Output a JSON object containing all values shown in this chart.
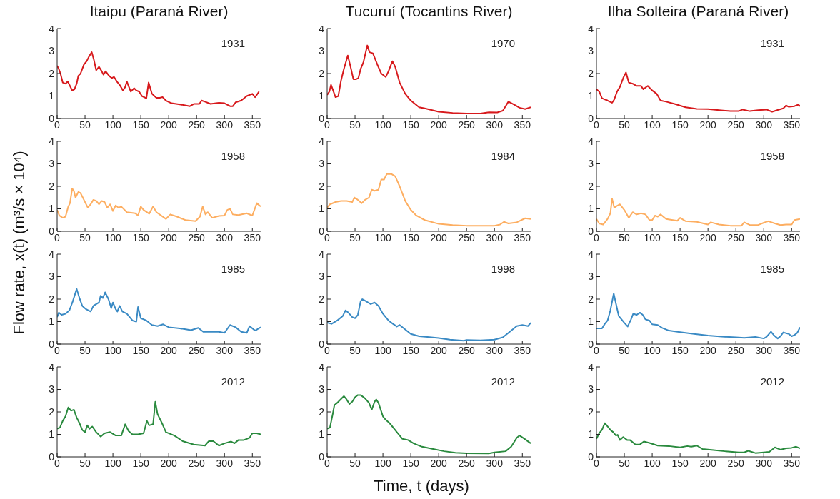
{
  "chart_data": [
    {
      "type": "line",
      "title": "Itaipu (Paraná River)",
      "annotations": [
        "1931"
      ],
      "xlim": [
        0,
        365
      ],
      "xticks": [
        0,
        50,
        100,
        150,
        200,
        250,
        300,
        350
      ],
      "ylim": [
        0,
        4
      ],
      "yticks": [
        0,
        1,
        2,
        3,
        4
      ],
      "series": [
        {
          "color": "#d7191c",
          "x": [
            0,
            3,
            6,
            10,
            15,
            19,
            22,
            27,
            31,
            35,
            38,
            42,
            48,
            53,
            57,
            62,
            66,
            70,
            75,
            80,
            83,
            87,
            93,
            98,
            102,
            107,
            112,
            118,
            122,
            125,
            128,
            132,
            138,
            142,
            147,
            152,
            160,
            164,
            170,
            178,
            184,
            189,
            195,
            205,
            220,
            238,
            245,
            255,
            259,
            265,
            275,
            290,
            300,
            310,
            315,
            320,
            330,
            340,
            350,
            355,
            362
          ],
          "values": [
            2.35,
            2.2,
            2.0,
            1.6,
            1.55,
            1.65,
            1.5,
            1.25,
            1.3,
            1.55,
            1.9,
            2.0,
            2.4,
            2.55,
            2.75,
            2.95,
            2.6,
            2.15,
            2.3,
            2.1,
            1.95,
            2.1,
            1.9,
            1.8,
            1.85,
            1.65,
            1.5,
            1.25,
            1.4,
            1.65,
            1.45,
            1.2,
            1.35,
            1.25,
            1.2,
            1.0,
            0.9,
            1.6,
            1.1,
            0.92,
            0.92,
            0.95,
            0.8,
            0.68,
            0.63,
            0.55,
            0.65,
            0.65,
            0.8,
            0.75,
            0.65,
            0.7,
            0.68,
            0.55,
            0.55,
            0.72,
            0.8,
            1.0,
            1.1,
            0.95,
            1.2
          ]
        }
      ]
    },
    {
      "type": "line",
      "title": "Tucuruí (Tocantins River)",
      "annotations": [
        "1970"
      ],
      "xlim": [
        0,
        365
      ],
      "xticks": [
        0,
        50,
        100,
        150,
        200,
        250,
        300,
        350
      ],
      "ylim": [
        0,
        4
      ],
      "yticks": [
        0,
        1,
        2,
        3,
        4
      ],
      "series": [
        {
          "color": "#d7191c",
          "x": [
            0,
            4,
            7,
            10,
            15,
            20,
            25,
            30,
            37,
            42,
            47,
            52,
            56,
            60,
            65,
            72,
            76,
            82,
            90,
            97,
            105,
            110,
            117,
            122,
            130,
            140,
            150,
            165,
            175,
            200,
            225,
            250,
            275,
            290,
            305,
            315,
            320,
            325,
            335,
            345,
            355,
            365
          ],
          "values": [
            1.05,
            1.2,
            1.5,
            1.3,
            0.95,
            1.0,
            1.7,
            2.2,
            2.8,
            2.3,
            1.75,
            1.75,
            1.8,
            2.2,
            2.5,
            3.25,
            2.95,
            2.9,
            2.4,
            2.0,
            1.85,
            2.1,
            2.55,
            2.3,
            1.6,
            1.1,
            0.8,
            0.5,
            0.45,
            0.3,
            0.25,
            0.22,
            0.22,
            0.28,
            0.27,
            0.35,
            0.55,
            0.75,
            0.62,
            0.48,
            0.42,
            0.5
          ]
        }
      ]
    },
    {
      "type": "line",
      "title": "Ilha Solteira (Paraná River)",
      "annotations": [
        "1931"
      ],
      "xlim": [
        0,
        365
      ],
      "xticks": [
        0,
        50,
        100,
        150,
        200,
        250,
        300,
        350
      ],
      "ylim": [
        0,
        4
      ],
      "yticks": [
        0,
        1,
        2,
        3,
        4
      ],
      "series": [
        {
          "color": "#d7191c",
          "x": [
            0,
            5,
            10,
            20,
            28,
            32,
            37,
            42,
            48,
            53,
            58,
            65,
            72,
            80,
            84,
            92,
            100,
            108,
            115,
            125,
            140,
            160,
            180,
            200,
            220,
            240,
            255,
            262,
            275,
            290,
            305,
            315,
            325,
            335,
            340,
            345,
            355,
            362,
            365
          ],
          "values": [
            1.3,
            1.2,
            0.9,
            0.8,
            0.7,
            0.85,
            1.2,
            1.4,
            1.8,
            2.05,
            1.6,
            1.55,
            1.45,
            1.45,
            1.3,
            1.45,
            1.25,
            1.1,
            0.8,
            0.75,
            0.65,
            0.5,
            0.43,
            0.42,
            0.37,
            0.33,
            0.33,
            0.4,
            0.33,
            0.37,
            0.4,
            0.3,
            0.38,
            0.45,
            0.58,
            0.52,
            0.55,
            0.62,
            0.55
          ]
        }
      ]
    },
    {
      "type": "line",
      "annotations": [
        "1958"
      ],
      "xlim": [
        0,
        365
      ],
      "xticks": [
        0,
        50,
        100,
        150,
        200,
        250,
        300,
        350
      ],
      "ylim": [
        0,
        4
      ],
      "yticks": [
        0,
        1,
        2,
        3,
        4
      ],
      "series": [
        {
          "color": "#fdae61",
          "x": [
            0,
            4,
            10,
            15,
            20,
            23,
            27,
            30,
            33,
            38,
            42,
            48,
            55,
            60,
            65,
            70,
            75,
            80,
            85,
            90,
            95,
            100,
            105,
            110,
            115,
            125,
            140,
            145,
            150,
            155,
            165,
            172,
            178,
            195,
            203,
            215,
            230,
            248,
            256,
            261,
            266,
            270,
            278,
            290,
            300,
            305,
            310,
            315,
            325,
            340,
            350,
            358,
            365
          ],
          "values": [
            0.95,
            0.7,
            0.6,
            0.65,
            1.1,
            1.25,
            1.9,
            1.8,
            1.5,
            1.75,
            1.7,
            1.4,
            1.05,
            1.2,
            1.4,
            1.35,
            1.2,
            1.35,
            1.3,
            1.05,
            1.2,
            0.9,
            1.15,
            1.05,
            1.1,
            0.85,
            0.8,
            0.7,
            1.1,
            0.95,
            0.78,
            1.1,
            0.85,
            0.55,
            0.75,
            0.65,
            0.5,
            0.45,
            0.65,
            1.1,
            0.75,
            0.85,
            0.6,
            0.68,
            0.7,
            0.95,
            1.0,
            0.75,
            0.72,
            0.8,
            0.7,
            1.25,
            1.1
          ]
        }
      ]
    },
    {
      "type": "line",
      "annotations": [
        "1984"
      ],
      "xlim": [
        0,
        365
      ],
      "xticks": [
        0,
        50,
        100,
        150,
        200,
        250,
        300,
        350
      ],
      "ylim": [
        0,
        4
      ],
      "yticks": [
        0,
        1,
        2,
        3,
        4
      ],
      "series": [
        {
          "color": "#fdae61",
          "x": [
            0,
            5,
            15,
            25,
            35,
            45,
            49,
            55,
            62,
            68,
            75,
            80,
            85,
            92,
            97,
            102,
            107,
            115,
            122,
            130,
            140,
            150,
            160,
            175,
            200,
            225,
            250,
            275,
            300,
            310,
            317,
            325,
            340,
            355,
            365
          ],
          "values": [
            1.05,
            1.2,
            1.3,
            1.35,
            1.35,
            1.3,
            1.5,
            1.4,
            1.25,
            1.4,
            1.5,
            1.85,
            1.8,
            1.85,
            2.3,
            2.3,
            2.55,
            2.55,
            2.45,
            2.0,
            1.35,
            0.95,
            0.7,
            0.5,
            0.33,
            0.28,
            0.25,
            0.25,
            0.25,
            0.3,
            0.42,
            0.35,
            0.4,
            0.58,
            0.55
          ]
        }
      ]
    },
    {
      "type": "line",
      "annotations": [
        "1958"
      ],
      "xlim": [
        0,
        365
      ],
      "xticks": [
        0,
        50,
        100,
        150,
        200,
        250,
        300,
        350
      ],
      "ylim": [
        0,
        4
      ],
      "yticks": [
        0,
        1,
        2,
        3,
        4
      ],
      "series": [
        {
          "color": "#fdae61",
          "x": [
            0,
            5,
            12,
            20,
            25,
            28,
            32,
            38,
            42,
            50,
            58,
            65,
            72,
            80,
            88,
            95,
            100,
            105,
            110,
            115,
            125,
            145,
            150,
            160,
            180,
            200,
            205,
            220,
            240,
            260,
            265,
            275,
            290,
            300,
            308,
            320,
            330,
            340,
            350,
            355,
            365
          ],
          "values": [
            0.55,
            0.35,
            0.3,
            0.55,
            0.8,
            1.45,
            1.05,
            1.15,
            1.2,
            0.95,
            0.6,
            0.85,
            0.75,
            0.8,
            0.75,
            0.5,
            0.5,
            0.7,
            0.65,
            0.75,
            0.55,
            0.47,
            0.6,
            0.45,
            0.42,
            0.3,
            0.4,
            0.3,
            0.25,
            0.25,
            0.4,
            0.28,
            0.28,
            0.38,
            0.45,
            0.35,
            0.28,
            0.3,
            0.3,
            0.5,
            0.55
          ]
        }
      ]
    },
    {
      "type": "line",
      "ylabel": "Flow rate, x(t) (m³/s × 10⁴)",
      "annotations": [
        "1985"
      ],
      "xlim": [
        0,
        365
      ],
      "xticks": [
        0,
        50,
        100,
        150,
        200,
        250,
        300,
        350
      ],
      "ylim": [
        0,
        4
      ],
      "yticks": [
        0,
        1,
        2,
        3,
        4
      ],
      "series": [
        {
          "color": "#3a8ac4",
          "x": [
            0,
            3,
            8,
            15,
            22,
            28,
            35,
            40,
            45,
            52,
            60,
            65,
            75,
            78,
            82,
            86,
            92,
            97,
            100,
            105,
            108,
            112,
            117,
            125,
            135,
            142,
            145,
            150,
            160,
            170,
            180,
            190,
            200,
            220,
            240,
            253,
            262,
            275,
            290,
            300,
            310,
            320,
            330,
            340,
            345,
            355,
            365
          ],
          "values": [
            1.2,
            1.4,
            1.3,
            1.35,
            1.5,
            1.9,
            2.45,
            2.05,
            1.7,
            1.55,
            1.45,
            1.7,
            1.85,
            2.15,
            2.05,
            2.3,
            2.0,
            1.6,
            1.85,
            1.55,
            1.45,
            1.7,
            1.45,
            1.35,
            1.05,
            1.0,
            1.65,
            1.15,
            1.05,
            0.85,
            0.8,
            0.88,
            0.75,
            0.7,
            0.62,
            0.72,
            0.55,
            0.55,
            0.55,
            0.5,
            0.85,
            0.75,
            0.55,
            0.5,
            0.8,
            0.6,
            0.75
          ]
        }
      ]
    },
    {
      "type": "line",
      "annotations": [
        "1998"
      ],
      "xlim": [
        0,
        365
      ],
      "xticks": [
        0,
        50,
        100,
        150,
        200,
        250,
        300,
        350
      ],
      "ylim": [
        0,
        4
      ],
      "yticks": [
        0,
        1,
        2,
        3,
        4
      ],
      "series": [
        {
          "color": "#3a8ac4",
          "x": [
            0,
            8,
            18,
            28,
            33,
            38,
            45,
            50,
            55,
            60,
            63,
            70,
            78,
            85,
            92,
            100,
            110,
            118,
            125,
            130,
            140,
            150,
            165,
            180,
            200,
            220,
            245,
            250,
            275,
            300,
            315,
            325,
            340,
            350,
            360,
            365
          ],
          "values": [
            0.95,
            0.9,
            1.05,
            1.25,
            1.5,
            1.4,
            1.2,
            1.15,
            1.3,
            1.9,
            2.0,
            1.9,
            1.78,
            1.85,
            1.7,
            1.35,
            1.05,
            0.9,
            0.78,
            0.85,
            0.65,
            0.45,
            0.35,
            0.32,
            0.27,
            0.2,
            0.15,
            0.18,
            0.17,
            0.2,
            0.3,
            0.5,
            0.8,
            0.85,
            0.8,
            0.95
          ]
        }
      ]
    },
    {
      "type": "line",
      "annotations": [
        "1985"
      ],
      "xlim": [
        0,
        365
      ],
      "xticks": [
        0,
        50,
        100,
        150,
        200,
        250,
        300,
        350
      ],
      "ylim": [
        0,
        4
      ],
      "yticks": [
        0,
        1,
        2,
        3,
        4
      ],
      "series": [
        {
          "color": "#3a8ac4",
          "x": [
            0,
            10,
            15,
            20,
            25,
            31,
            35,
            40,
            50,
            56,
            62,
            66,
            72,
            78,
            83,
            88,
            95,
            100,
            110,
            118,
            130,
            150,
            175,
            200,
            225,
            250,
            265,
            285,
            300,
            305,
            313,
            318,
            325,
            330,
            335,
            345,
            350,
            355,
            360,
            365
          ],
          "values": [
            0.7,
            0.7,
            0.9,
            1.05,
            1.5,
            2.25,
            1.8,
            1.25,
            0.95,
            0.78,
            1.1,
            1.35,
            1.3,
            1.4,
            1.3,
            1.1,
            1.05,
            0.88,
            0.85,
            0.72,
            0.6,
            0.53,
            0.45,
            0.38,
            0.33,
            0.3,
            0.28,
            0.32,
            0.25,
            0.32,
            0.55,
            0.4,
            0.25,
            0.35,
            0.52,
            0.45,
            0.35,
            0.4,
            0.5,
            0.75
          ]
        }
      ]
    },
    {
      "type": "line",
      "annotations": [
        "2012"
      ],
      "xlim": [
        0,
        365
      ],
      "xticks": [
        0,
        50,
        100,
        150,
        200,
        250,
        300,
        350
      ],
      "ylim": [
        0,
        4
      ],
      "yticks": [
        0,
        1,
        2,
        3,
        4
      ],
      "series": [
        {
          "color": "#2a8a3e",
          "x": [
            0,
            5,
            10,
            15,
            20,
            25,
            30,
            35,
            40,
            45,
            50,
            54,
            58,
            63,
            70,
            78,
            85,
            95,
            105,
            115,
            122,
            128,
            135,
            145,
            155,
            161,
            165,
            172,
            176,
            180,
            188,
            195,
            210,
            225,
            245,
            265,
            272,
            280,
            290,
            300,
            312,
            318,
            325,
            335,
            345,
            350,
            358,
            365
          ],
          "values": [
            1.25,
            1.3,
            1.6,
            1.8,
            2.2,
            2.05,
            2.1,
            1.75,
            1.5,
            1.2,
            1.1,
            1.4,
            1.25,
            1.35,
            1.1,
            0.9,
            1.05,
            1.1,
            0.95,
            0.95,
            1.45,
            1.15,
            1.0,
            1.0,
            1.05,
            1.6,
            1.4,
            1.45,
            2.45,
            1.9,
            1.5,
            1.1,
            0.95,
            0.7,
            0.55,
            0.5,
            0.7,
            0.7,
            0.5,
            0.6,
            0.68,
            0.6,
            0.75,
            0.75,
            0.85,
            1.05,
            1.05,
            1.0
          ]
        }
      ]
    },
    {
      "type": "line",
      "xlabel": "Time, t (days)",
      "annotations": [
        "2012"
      ],
      "xlim": [
        0,
        365
      ],
      "xticks": [
        0,
        50,
        100,
        150,
        200,
        250,
        300,
        350
      ],
      "ylim": [
        0,
        4
      ],
      "yticks": [
        0,
        1,
        2,
        3,
        4
      ],
      "series": [
        {
          "color": "#2a8a3e",
          "x": [
            0,
            5,
            10,
            13,
            18,
            22,
            30,
            35,
            40,
            45,
            50,
            55,
            60,
            68,
            75,
            80,
            85,
            88,
            92,
            100,
            105,
            112,
            125,
            135,
            145,
            155,
            170,
            190,
            210,
            230,
            250,
            290,
            300,
            320,
            330,
            340,
            345,
            355,
            365
          ],
          "values": [
            1.25,
            1.3,
            1.9,
            2.3,
            2.4,
            2.5,
            2.7,
            2.55,
            2.35,
            2.45,
            2.65,
            2.75,
            2.75,
            2.6,
            2.4,
            2.1,
            2.45,
            2.55,
            2.4,
            1.8,
            1.65,
            1.5,
            1.1,
            0.8,
            0.75,
            0.6,
            0.45,
            0.35,
            0.25,
            0.18,
            0.16,
            0.15,
            0.2,
            0.25,
            0.45,
            0.85,
            0.95,
            0.78,
            0.6
          ]
        }
      ]
    },
    {
      "type": "line",
      "annotations": [
        "2012"
      ],
      "xlim": [
        0,
        365
      ],
      "xticks": [
        0,
        50,
        100,
        150,
        200,
        250,
        300,
        350
      ],
      "ylim": [
        0,
        4
      ],
      "yticks": [
        0,
        1,
        2,
        3,
        4
      ],
      "series": [
        {
          "color": "#2a8a3e",
          "x": [
            0,
            5,
            10,
            15,
            20,
            25,
            30,
            35,
            38,
            42,
            48,
            55,
            60,
            70,
            78,
            85,
            95,
            110,
            130,
            150,
            163,
            170,
            180,
            190,
            210,
            230,
            255,
            265,
            272,
            285,
            300,
            310,
            320,
            330,
            340,
            350,
            358,
            365
          ],
          "values": [
            0.8,
            1.05,
            1.2,
            1.5,
            1.35,
            1.2,
            1.1,
            0.95,
            0.98,
            0.75,
            0.88,
            0.75,
            0.75,
            0.55,
            0.55,
            0.68,
            0.62,
            0.5,
            0.48,
            0.42,
            0.48,
            0.45,
            0.5,
            0.35,
            0.3,
            0.25,
            0.2,
            0.2,
            0.27,
            0.17,
            0.2,
            0.22,
            0.42,
            0.32,
            0.38,
            0.4,
            0.45,
            0.38
          ]
        }
      ]
    }
  ]
}
